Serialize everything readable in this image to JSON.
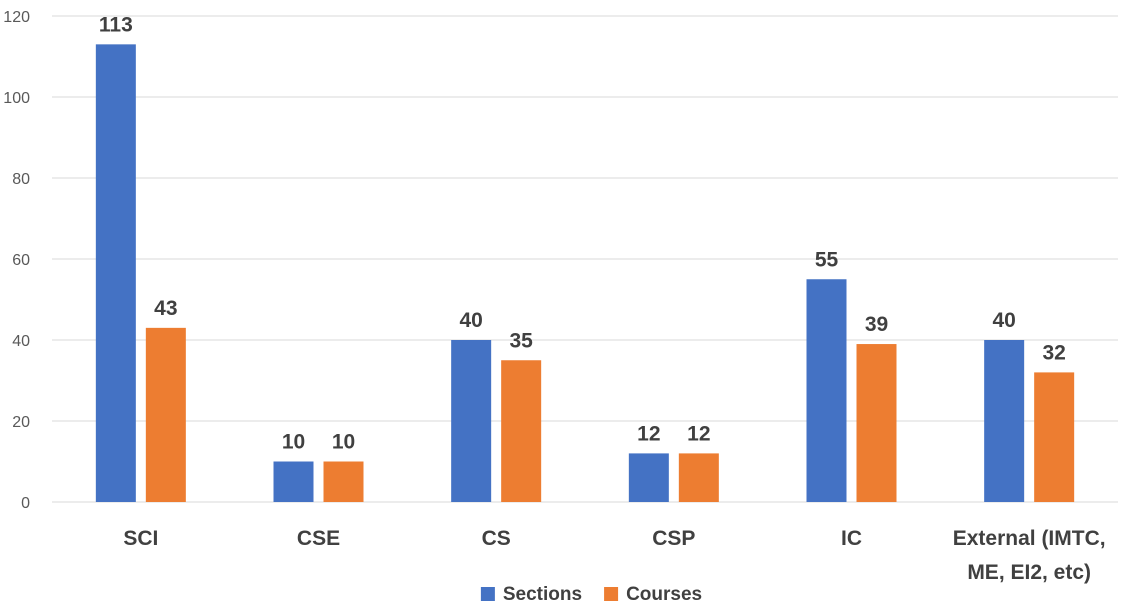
{
  "chart_data": {
    "type": "bar",
    "categories": [
      "SCI",
      "CSE",
      "CS",
      "CSP",
      "IC",
      "External (IMTC,\nME, EI2, etc)"
    ],
    "series": [
      {
        "name": "Sections",
        "values": [
          113,
          10,
          40,
          12,
          55,
          40
        ],
        "color": "#4472c4"
      },
      {
        "name": "Courses",
        "values": [
          43,
          10,
          35,
          12,
          39,
          32
        ],
        "color": "#ed7d31"
      }
    ],
    "ylim": [
      0,
      120
    ],
    "yticks": [
      0,
      20,
      40,
      60,
      80,
      100,
      120
    ],
    "grid": true,
    "legend_position": "bottom",
    "data_labels": true,
    "title": "",
    "xlabel": "",
    "ylabel": ""
  }
}
